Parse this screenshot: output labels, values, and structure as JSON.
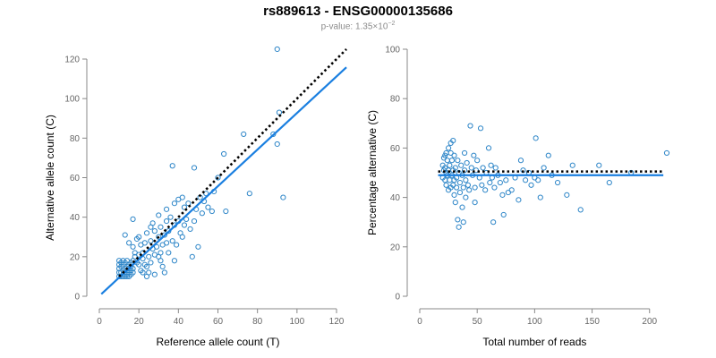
{
  "title": "rs889613 - ENSG00000135686",
  "subtitle": {
    "prefix": "p-value: 1.35×10",
    "exponent": "−2"
  },
  "colors": {
    "points": "#2e86c8",
    "fit_line": "#1a7fe0",
    "reference_line": "#000000",
    "axis": "#888888",
    "tick_text": "#666666",
    "subtitle_text": "#8c8c8c"
  },
  "chart_data": [
    {
      "type": "scatter",
      "title": "",
      "xlabel": "Reference allele count (T)",
      "ylabel": "Alternative allele count (C)",
      "xlim": [
        0,
        125
      ],
      "ylim": [
        0,
        125
      ],
      "xticks": [
        0,
        20,
        40,
        60,
        80,
        100,
        120
      ],
      "yticks": [
        0,
        20,
        40,
        60,
        80,
        100,
        120
      ],
      "points": [
        [
          10,
          10
        ],
        [
          10,
          12
        ],
        [
          10,
          14
        ],
        [
          10,
          16
        ],
        [
          10,
          18
        ],
        [
          11,
          10
        ],
        [
          11,
          12
        ],
        [
          11,
          15
        ],
        [
          11,
          17
        ],
        [
          12,
          10
        ],
        [
          12,
          11
        ],
        [
          12,
          13
        ],
        [
          12,
          16
        ],
        [
          12,
          18
        ],
        [
          13,
          10
        ],
        [
          13,
          12
        ],
        [
          13,
          14
        ],
        [
          13,
          17
        ],
        [
          14,
          10
        ],
        [
          14,
          11
        ],
        [
          14,
          13
        ],
        [
          14,
          15
        ],
        [
          14,
          18
        ],
        [
          15,
          10
        ],
        [
          15,
          12
        ],
        [
          15,
          14
        ],
        [
          15,
          16
        ],
        [
          16,
          11
        ],
        [
          16,
          13
        ],
        [
          16,
          15
        ],
        [
          16,
          17
        ],
        [
          17,
          12
        ],
        [
          17,
          14
        ],
        [
          17,
          18
        ],
        [
          13,
          31
        ],
        [
          15,
          27
        ],
        [
          17,
          25
        ],
        [
          18,
          22
        ],
        [
          17,
          39
        ],
        [
          18,
          20
        ],
        [
          19,
          17
        ],
        [
          19,
          29
        ],
        [
          20,
          30
        ],
        [
          20,
          16
        ],
        [
          21,
          26
        ],
        [
          21,
          13
        ],
        [
          22,
          12
        ],
        [
          22,
          19
        ],
        [
          22,
          22
        ],
        [
          23,
          16
        ],
        [
          23,
          27
        ],
        [
          24,
          15
        ],
        [
          24,
          10
        ],
        [
          25,
          12
        ],
        [
          25,
          20
        ],
        [
          26,
          28
        ],
        [
          26,
          17
        ],
        [
          27,
          24
        ],
        [
          28,
          11
        ],
        [
          28,
          21
        ],
        [
          28,
          33
        ],
        [
          29,
          25
        ],
        [
          30,
          30
        ],
        [
          30,
          20
        ],
        [
          31,
          35
        ],
        [
          31,
          18
        ],
        [
          32,
          15
        ],
        [
          32,
          26
        ],
        [
          33,
          31
        ],
        [
          33,
          12
        ],
        [
          34,
          27
        ],
        [
          34,
          38
        ],
        [
          35,
          33
        ],
        [
          35,
          22
        ],
        [
          36,
          40
        ],
        [
          37,
          66
        ],
        [
          37,
          28
        ],
        [
          38,
          36
        ],
        [
          38,
          18
        ],
        [
          39,
          26
        ],
        [
          40,
          49
        ],
        [
          40,
          38
        ],
        [
          41,
          32
        ],
        [
          42,
          30
        ],
        [
          43,
          45
        ],
        [
          43,
          36
        ],
        [
          44,
          39
        ],
        [
          45,
          47
        ],
        [
          46,
          34
        ],
        [
          47,
          20
        ],
        [
          48,
          38
        ],
        [
          48,
          65
        ],
        [
          49,
          44
        ],
        [
          50,
          25
        ],
        [
          51,
          50
        ],
        [
          52,
          42
        ],
        [
          53,
          48
        ],
        [
          54,
          52
        ],
        [
          55,
          45
        ],
        [
          57,
          43
        ],
        [
          58,
          53
        ],
        [
          60,
          60
        ],
        [
          63,
          72
        ],
        [
          64,
          43
        ],
        [
          73,
          82
        ],
        [
          76,
          52
        ],
        [
          88,
          82
        ],
        [
          90,
          125
        ],
        [
          90,
          77
        ],
        [
          91,
          93
        ],
        [
          93,
          50
        ],
        [
          20,
          21
        ],
        [
          24,
          32
        ],
        [
          26,
          35
        ],
        [
          30,
          41
        ],
        [
          34,
          44
        ],
        [
          38,
          47
        ],
        [
          42,
          50
        ],
        [
          27,
          37
        ],
        [
          31,
          22
        ]
      ],
      "reference_line": {
        "style": "dotted",
        "slope": 1.0,
        "intercept": 0,
        "x": [
          10,
          125
        ]
      },
      "fit_line": {
        "style": "solid",
        "slope": 0.925,
        "intercept": 0.2,
        "x": [
          1,
          125
        ]
      }
    },
    {
      "type": "scatter",
      "title": "",
      "xlabel": "Total number of reads",
      "ylabel": "Percentage alternative (C)",
      "xlim": [
        0,
        215
      ],
      "ylim": [
        0,
        100
      ],
      "xticks": [
        0,
        50,
        100,
        150,
        200
      ],
      "yticks": [
        0,
        20,
        40,
        60,
        80,
        100
      ],
      "points": [
        [
          20,
          48
        ],
        [
          20,
          53
        ],
        [
          21,
          51
        ],
        [
          21,
          56
        ],
        [
          22,
          47
        ],
        [
          22,
          52
        ],
        [
          22,
          57
        ],
        [
          23,
          45
        ],
        [
          23,
          50
        ],
        [
          23,
          58
        ],
        [
          24,
          49
        ],
        [
          24,
          55
        ],
        [
          25,
          43
        ],
        [
          25,
          51
        ],
        [
          25,
          60
        ],
        [
          26,
          47
        ],
        [
          26,
          53
        ],
        [
          27,
          44
        ],
        [
          27,
          58
        ],
        [
          27,
          62
        ],
        [
          28,
          49
        ],
        [
          28,
          55
        ],
        [
          29,
          45
        ],
        [
          29,
          51
        ],
        [
          29,
          63
        ],
        [
          30,
          41
        ],
        [
          30,
          47
        ],
        [
          30,
          57
        ],
        [
          31,
          52
        ],
        [
          31,
          38
        ],
        [
          32,
          48
        ],
        [
          32,
          44
        ],
        [
          33,
          31
        ],
        [
          33,
          55
        ],
        [
          34,
          28
        ],
        [
          34,
          50
        ],
        [
          35,
          46
        ],
        [
          35,
          42
        ],
        [
          36,
          53
        ],
        [
          37,
          36
        ],
        [
          37,
          49
        ],
        [
          38,
          30
        ],
        [
          38,
          44
        ],
        [
          39,
          58
        ],
        [
          39,
          51
        ],
        [
          40,
          47
        ],
        [
          40,
          40
        ],
        [
          41,
          54
        ],
        [
          42,
          45
        ],
        [
          43,
          43
        ],
        [
          44,
          69
        ],
        [
          45,
          52
        ],
        [
          46,
          49
        ],
        [
          47,
          57
        ],
        [
          48,
          38
        ],
        [
          48,
          44
        ],
        [
          49,
          51
        ],
        [
          50,
          55
        ],
        [
          52,
          48
        ],
        [
          53,
          68
        ],
        [
          54,
          45
        ],
        [
          55,
          52
        ],
        [
          57,
          43
        ],
        [
          58,
          50
        ],
        [
          60,
          60
        ],
        [
          61,
          46
        ],
        [
          62,
          53
        ],
        [
          63,
          48
        ],
        [
          64,
          30
        ],
        [
          65,
          44
        ],
        [
          66,
          52
        ],
        [
          68,
          49
        ],
        [
          70,
          46
        ],
        [
          72,
          41
        ],
        [
          73,
          33
        ],
        [
          75,
          47
        ],
        [
          77,
          42
        ],
        [
          80,
          43
        ],
        [
          83,
          48
        ],
        [
          86,
          39
        ],
        [
          88,
          55
        ],
        [
          90,
          51
        ],
        [
          92,
          47
        ],
        [
          95,
          50
        ],
        [
          97,
          45
        ],
        [
          100,
          48
        ],
        [
          101,
          64
        ],
        [
          103,
          47
        ],
        [
          105,
          40
        ],
        [
          108,
          52
        ],
        [
          112,
          57
        ],
        [
          115,
          49
        ],
        [
          120,
          46
        ],
        [
          128,
          41
        ],
        [
          133,
          53
        ],
        [
          140,
          35
        ],
        [
          156,
          53
        ],
        [
          165,
          46
        ],
        [
          184,
          50
        ],
        [
          215,
          58
        ]
      ],
      "reference_line": {
        "style": "dotted",
        "y": 50.5,
        "x": [
          16,
          212
        ]
      },
      "fit_line": {
        "style": "solid",
        "y": 49,
        "x": [
          16,
          212
        ]
      }
    }
  ]
}
